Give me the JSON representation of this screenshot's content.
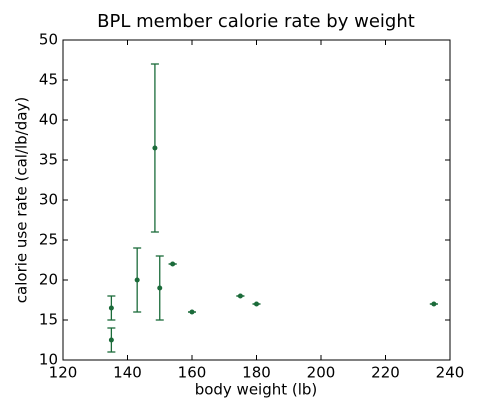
{
  "chart_data": {
    "type": "scatter",
    "title": "BPL member calorie rate by weight",
    "x_label": "body weight (lb)",
    "y_label": "calorie use rate (cal/lb/day)",
    "series": [
      {
        "color": "#1b6b3a",
        "x": [
          135,
          135,
          143,
          148.5,
          150,
          154,
          160,
          175,
          180,
          235
        ],
        "values": [
          12.5,
          16.5,
          20,
          36.5,
          19,
          22,
          16,
          18,
          17,
          17
        ],
        "errors": [
          1.5,
          1.5,
          4,
          10.5,
          4,
          0,
          0,
          0,
          0,
          0
        ]
      }
    ],
    "xlim": [
      120,
      240
    ],
    "xticks": [
      120,
      140,
      160,
      180,
      200,
      220,
      240
    ],
    "ylim": [
      10,
      50
    ],
    "yticks": [
      10,
      15,
      20,
      25,
      30,
      35,
      40,
      45,
      50
    ]
  }
}
